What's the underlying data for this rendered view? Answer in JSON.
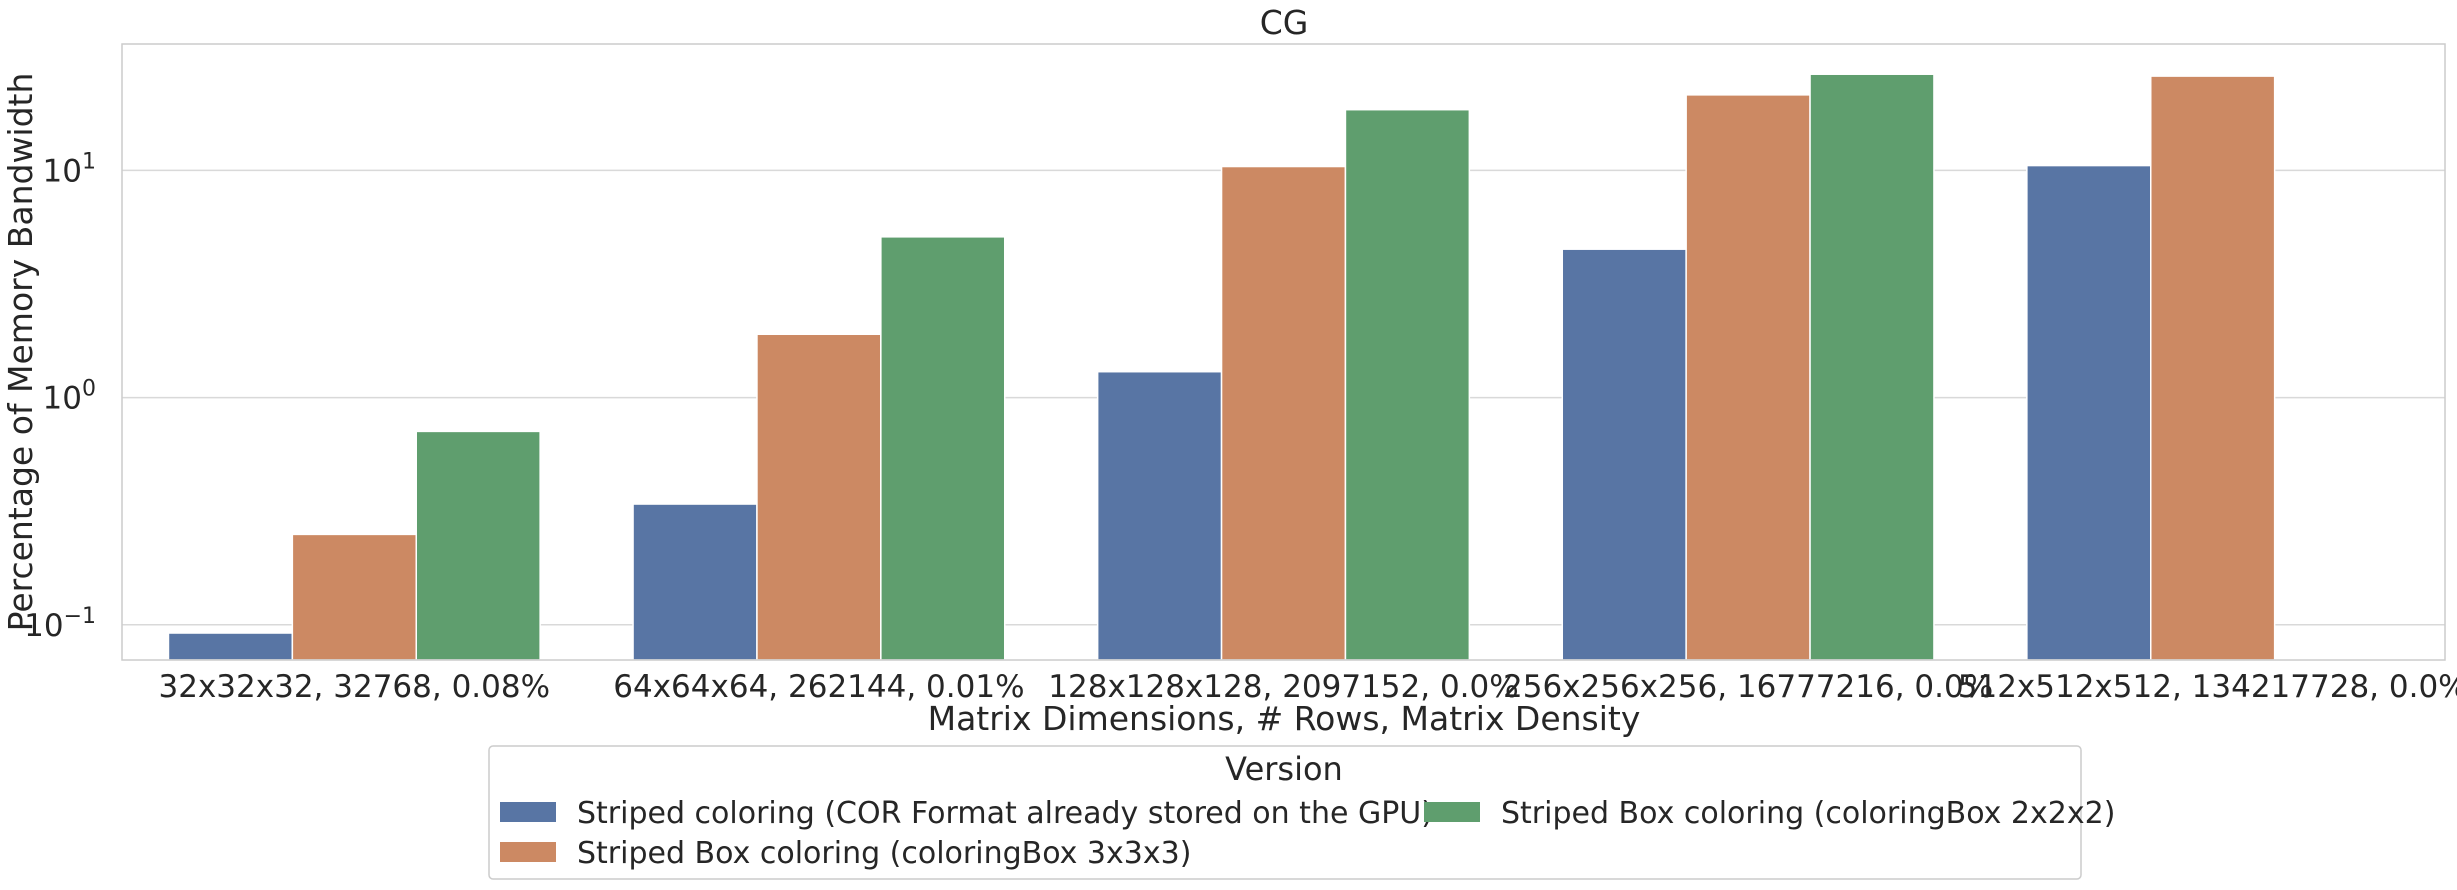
{
  "chart_data": {
    "type": "bar",
    "title": "CG",
    "xlabel": "Matrix Dimensions, # Rows, Matrix Density",
    "ylabel": "Percentage of Memory Bandwidth",
    "yscale": "log",
    "ylim": [
      0.07,
      36
    ],
    "yticks": [
      {
        "value": 0.1,
        "base": "10",
        "exp": "−1"
      },
      {
        "value": 1,
        "base": "10",
        "exp": "0"
      },
      {
        "value": 10,
        "base": "10",
        "exp": "1"
      }
    ],
    "grid": true,
    "categories": [
      "32x32x32, 32768, 0.08%",
      "64x64x64, 262144, 0.01%",
      "128x128x128, 2097152, 0.0%",
      "256x256x256, 16777216, 0.0%",
      "512x512x512, 134217728, 0.0%"
    ],
    "series": [
      {
        "name": "Striped coloring (COR Format already stored on the GPU)",
        "color": "#5875a4",
        "values": [
          0.092,
          0.34,
          1.3,
          4.5,
          10.5
        ]
      },
      {
        "name": "Striped Box coloring (coloringBox 3x3x3)",
        "color": "#cc8963",
        "values": [
          0.25,
          1.9,
          10.4,
          21.5,
          26.0
        ]
      },
      {
        "name": "Striped Box coloring (coloringBox 2x2x2)",
        "color": "#5f9e6e",
        "values": [
          0.71,
          5.1,
          18.5,
          26.5,
          null
        ]
      }
    ],
    "legend": {
      "title": "Version",
      "placement": "bottom-center",
      "columns": 2,
      "order": [
        0,
        1,
        2
      ]
    }
  }
}
